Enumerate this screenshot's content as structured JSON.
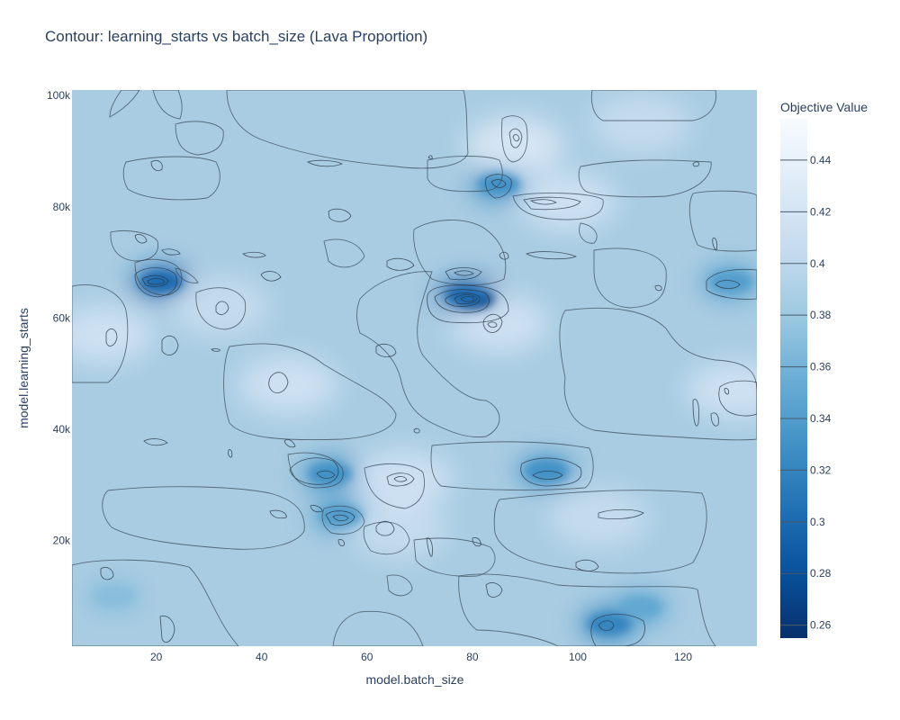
{
  "title": "Contour: learning_starts vs batch_size (Lava Proportion)",
  "chart_data": {
    "type": "contour",
    "title": "Contour: learning_starts vs batch_size (Lava Proportion)",
    "xlabel": "model.batch_size",
    "ylabel": "model.learning_starts",
    "xlim": [
      4,
      134
    ],
    "ylim": [
      1000,
      101000
    ],
    "x_ticks": [
      {
        "value": 20,
        "label": "20"
      },
      {
        "value": 40,
        "label": "40"
      },
      {
        "value": 60,
        "label": "60"
      },
      {
        "value": 80,
        "label": "80"
      },
      {
        "value": 100,
        "label": "100"
      },
      {
        "value": 120,
        "label": "120"
      }
    ],
    "y_ticks": [
      {
        "value": 20000,
        "label": "20k"
      },
      {
        "value": 40000,
        "label": "40k"
      },
      {
        "value": 60000,
        "label": "60k"
      },
      {
        "value": 80000,
        "label": "80k"
      },
      {
        "value": 100000,
        "label": "100k"
      }
    ],
    "colorbar": {
      "title": "Objective Value",
      "range": [
        0.255,
        0.456
      ],
      "ticks": [
        0.26,
        0.28,
        0.3,
        0.32,
        0.34,
        0.36,
        0.38,
        0.4,
        0.42,
        0.44
      ],
      "tick_labels": [
        "0.26",
        "0.28",
        "0.3",
        "0.32",
        "0.34",
        "0.36",
        "0.38",
        "0.4",
        "0.42",
        "0.44"
      ],
      "colorscale": "Blues (reversed)"
    },
    "contour_levels": [
      0.26,
      0.28,
      0.3,
      0.32,
      0.34,
      0.36,
      0.38,
      0.4,
      0.42,
      0.44
    ],
    "regions": [
      {
        "x": 80,
        "y": 63500,
        "value": 0.26,
        "kind": "min"
      },
      {
        "x": 79,
        "y": 64000,
        "value": 0.3,
        "kind": "low"
      },
      {
        "x": 21,
        "y": 66500,
        "value": 0.3,
        "kind": "low"
      },
      {
        "x": 106,
        "y": 5000,
        "value": 0.32,
        "kind": "low"
      },
      {
        "x": 94,
        "y": 32500,
        "value": 0.33,
        "kind": "low"
      },
      {
        "x": 53,
        "y": 32000,
        "value": 0.33,
        "kind": "low"
      },
      {
        "x": 85,
        "y": 84000,
        "value": 0.33,
        "kind": "low"
      },
      {
        "x": 55,
        "y": 24500,
        "value": 0.34,
        "kind": "low"
      },
      {
        "x": 129,
        "y": 66500,
        "value": 0.34,
        "kind": "low"
      },
      {
        "x": 12,
        "y": 10000,
        "value": 0.37,
        "kind": "low"
      },
      {
        "x": 112,
        "y": 8000,
        "value": 0.35,
        "kind": "low"
      },
      {
        "x": 45,
        "y": 48000,
        "value": 0.42,
        "kind": "high"
      },
      {
        "x": 88,
        "y": 91000,
        "value": 0.43,
        "kind": "high"
      },
      {
        "x": 98,
        "y": 81000,
        "value": 0.42,
        "kind": "high"
      },
      {
        "x": 85,
        "y": 59000,
        "value": 0.42,
        "kind": "high"
      },
      {
        "x": 10,
        "y": 57000,
        "value": 0.42,
        "kind": "high"
      },
      {
        "x": 104,
        "y": 24000,
        "value": 0.41,
        "kind": "high"
      },
      {
        "x": 112,
        "y": 95000,
        "value": 0.41,
        "kind": "high"
      },
      {
        "x": 130,
        "y": 47000,
        "value": 0.42,
        "kind": "high"
      },
      {
        "x": 32,
        "y": 62000,
        "value": 0.41,
        "kind": "high"
      },
      {
        "x": 66,
        "y": 22000,
        "value": 0.41,
        "kind": "high"
      },
      {
        "x": 67,
        "y": 31000,
        "value": 0.42,
        "kind": "high"
      }
    ]
  }
}
